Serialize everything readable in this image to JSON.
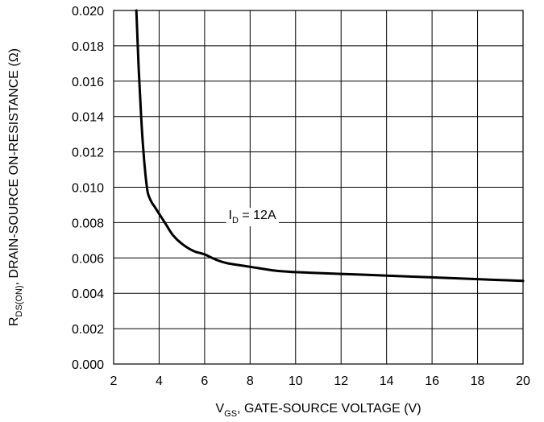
{
  "chart_data": {
    "type": "line",
    "xlabel": {
      "main": "V",
      "sub": "GS",
      "rest": ", GATE-SOURCE VOLTAGE (V)"
    },
    "ylabel": {
      "main": "R",
      "sub": "DS(ON)",
      "rest": ", DRAIN-SOURCE ON-RESISTANCE (Ω)"
    },
    "xlim": [
      2,
      20
    ],
    "ylim": [
      0,
      0.02
    ],
    "x_ticks": [
      "2",
      "4",
      "6",
      "8",
      "10",
      "12",
      "14",
      "16",
      "18",
      "20"
    ],
    "y_ticks": [
      "0.000",
      "0.002",
      "0.004",
      "0.006",
      "0.008",
      "0.010",
      "0.012",
      "0.014",
      "0.016",
      "0.018",
      "0.020"
    ],
    "grid": true,
    "annotation": {
      "main": "I",
      "sub": "D",
      "rest": " = 12A",
      "x": 7.05,
      "y": 0.0082
    },
    "series": [
      {
        "x": [
          3.0,
          3.1,
          3.2,
          3.3,
          3.4,
          3.5,
          3.65,
          3.8,
          4.0,
          4.3,
          4.6,
          5.0,
          5.5,
          6.0,
          6.5,
          7.0,
          8.0,
          9.0,
          10.0,
          12.0,
          14.0,
          16.0,
          18.0,
          20.0
        ],
        "y": [
          0.02,
          0.0168,
          0.0142,
          0.0122,
          0.0107,
          0.0097,
          0.0092,
          0.0089,
          0.0085,
          0.0079,
          0.0073,
          0.0068,
          0.0064,
          0.0062,
          0.0059,
          0.0057,
          0.0055,
          0.0053,
          0.0052,
          0.0051,
          0.005,
          0.0049,
          0.0048,
          0.0047
        ]
      }
    ]
  }
}
